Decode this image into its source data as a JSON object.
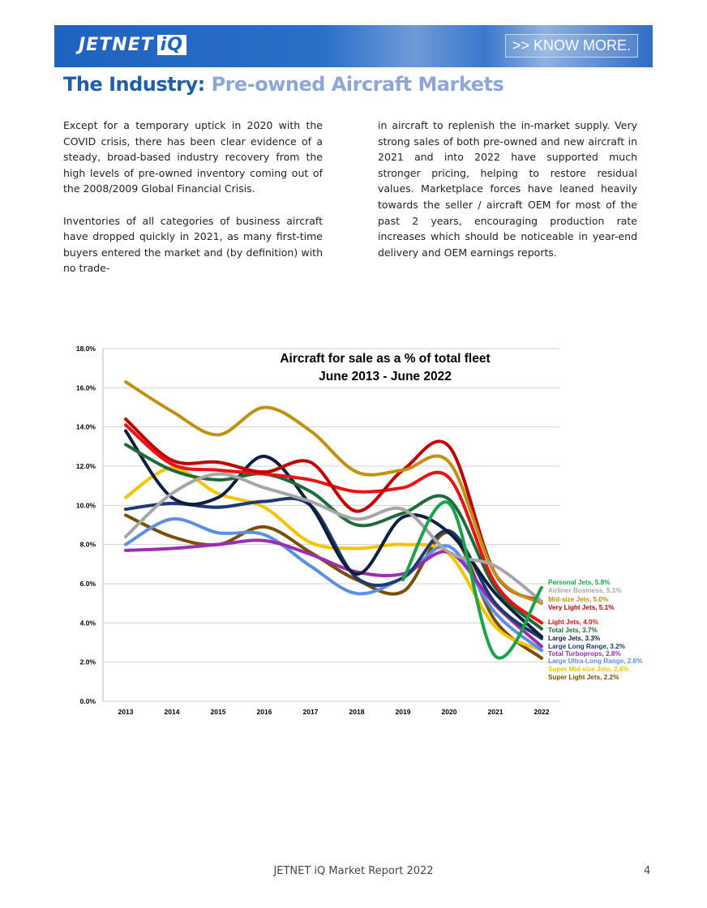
{
  "header": {
    "logo_text": "JETNET",
    "logo_suffix": "iQ",
    "know_more": ">> KNOW MORE."
  },
  "title": {
    "part1": "The Industry:",
    "part2": "Pre-owned Aircraft Markets"
  },
  "body": {
    "left": [
      "Except for a temporary uptick in 2020 with the COVID crisis, there has been clear evidence of a steady, broad-based industry recovery from the high levels of pre-owned inventory coming out of the 2008/2009 Global Financial Crisis.",
      "Inventories of all categories of business aircraft have dropped quickly in 2021, as many first-time buyers entered the market and (by definition) with no trade-"
    ],
    "right": [
      "in aircraft to replenish the in-market supply.  Very strong sales of both pre-owned and new aircraft in 2021 and into 2022 have supported much stronger pricing, helping to restore residual values. Marketplace forces have leaned heavily towards the seller / aircraft OEM for most of the past 2 years, encouraging production rate increases which should be noticeable in year-end delivery and OEM earnings reports."
    ]
  },
  "chart_data": {
    "type": "line",
    "title": "Aircraft for sale as a % of total fleet",
    "subtitle": "June 2013 - June 2022",
    "categories": [
      "2013",
      "2014",
      "2015",
      "2016",
      "2017",
      "2018",
      "2019",
      "2020",
      "2021",
      "2022"
    ],
    "ylim": [
      0,
      18
    ],
    "yticks": [
      "0.0%",
      "2.0%",
      "4.0%",
      "6.0%",
      "8.0%",
      "10.0%",
      "12.0%",
      "14.0%",
      "16.0%",
      "18.0%"
    ],
    "grid": true,
    "legend": "end-of-line labels, right",
    "series": [
      {
        "name": "Personal Jets",
        "end_label": "Personal Jets, 5.8%",
        "color": "#1aa34a",
        "values": [
          null,
          null,
          null,
          null,
          null,
          null,
          6.2,
          10.1,
          2.3,
          5.8
        ]
      },
      {
        "name": "Airliner Business",
        "end_label": "Airliner Business, 5.1%",
        "color": "#a6a6a6",
        "values": [
          8.4,
          10.6,
          11.6,
          10.9,
          10.2,
          9.3,
          9.8,
          7.6,
          6.9,
          5.1
        ]
      },
      {
        "name": "Mid-size Jets",
        "end_label": "Mid-size Jets, 5.0%",
        "color": "#c09010",
        "values": [
          16.3,
          14.8,
          13.6,
          15.0,
          13.8,
          11.7,
          11.8,
          12.2,
          6.5,
          5.0
        ]
      },
      {
        "name": "Very Light Jets",
        "end_label": "Very Light Jets, 5.1%",
        "color": "#c00000",
        "values": [
          14.4,
          12.3,
          12.2,
          11.7,
          12.2,
          9.7,
          11.8,
          13.0,
          6.5,
          5.1
        ]
      },
      {
        "name": "Light Jets",
        "end_label": "Light Jets, 4.0%",
        "color": "#ee1111",
        "values": [
          14.1,
          12.1,
          11.8,
          11.6,
          11.3,
          10.7,
          10.9,
          11.4,
          6.0,
          4.0
        ]
      },
      {
        "name": "Total Jets",
        "end_label": "Total Jets, 3.7%",
        "color": "#1e6b3a",
        "values": [
          13.1,
          11.8,
          11.3,
          11.6,
          10.7,
          9.0,
          9.6,
          10.3,
          5.8,
          3.7
        ]
      },
      {
        "name": "Large Jets",
        "end_label": "Large Jets, 3.3%",
        "color": "#0d1f3c",
        "values": [
          13.8,
          10.4,
          10.4,
          12.5,
          10.0,
          6.5,
          9.4,
          8.6,
          5.5,
          3.3
        ]
      },
      {
        "name": "Large Long Range",
        "end_label": "Large Long Range, 3.2%",
        "color": "#1f3a6e",
        "values": [
          9.8,
          10.1,
          9.9,
          10.2,
          10.0,
          6.3,
          6.3,
          8.7,
          5.0,
          3.2
        ]
      },
      {
        "name": "Total Turboprops",
        "end_label": "Total Turboprops, 2.8%",
        "color": "#9a2fb0",
        "values": [
          7.7,
          7.8,
          8.0,
          8.2,
          7.5,
          6.6,
          6.5,
          7.6,
          4.9,
          2.8
        ]
      },
      {
        "name": "Large Ultra-Long Range",
        "end_label": "Large Ultra-Long Range, 2.6%",
        "color": "#5b8fe6",
        "values": [
          8.0,
          9.3,
          8.6,
          8.5,
          6.9,
          5.5,
          6.3,
          7.9,
          4.5,
          2.6
        ]
      },
      {
        "name": "Super Mid-size Jets",
        "end_label": "Super Mid-size Jets, 2.6%",
        "color": "#f5c400",
        "values": [
          10.4,
          11.9,
          10.6,
          9.9,
          8.1,
          7.8,
          8.0,
          7.5,
          3.8,
          2.6
        ]
      },
      {
        "name": "Super Light Jets",
        "end_label": "Super Light Jets, 2.2%",
        "color": "#7a4f05",
        "values": [
          9.5,
          8.4,
          8.0,
          8.9,
          7.6,
          6.2,
          5.6,
          8.6,
          4.1,
          2.2
        ]
      }
    ]
  },
  "footer": {
    "text": "JETNET iQ Market Report 2022",
    "page": "4"
  }
}
